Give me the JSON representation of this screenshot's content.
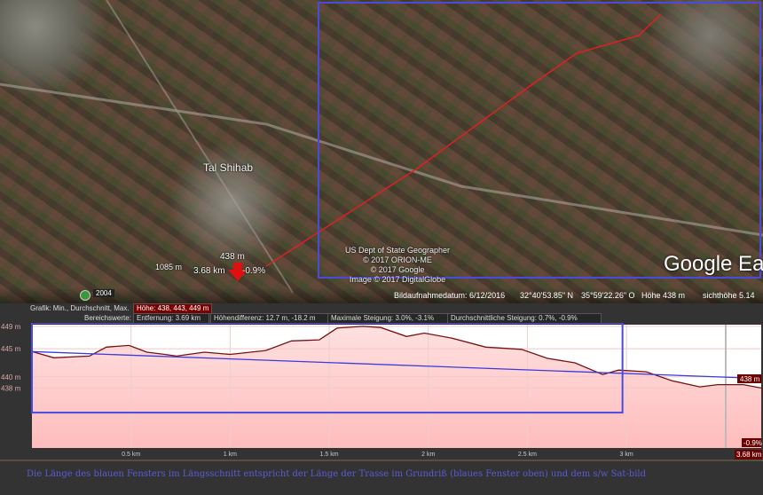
{
  "map": {
    "place_label": "Tal Shihab",
    "marker_elevation": "438 m",
    "marker_distance": "3.68 km",
    "marker_slope": "-0.9%",
    "elevation_label_left": "1085 m",
    "credits": [
      "US Dept of State Geographer",
      "© 2017 ORION-ME",
      "© 2017 Google",
      "Image © 2017 DigitalGlobe"
    ],
    "logo": "Google Ea",
    "route_color": "#e02020",
    "window_color": "#4a4adf",
    "marker_icon": "red-arrow-down-icon"
  },
  "statusbar": {
    "history_year": "2004",
    "imagery_date": "Bildaufnahmedatum: 6/12/2016",
    "lat": "32°40'53.85\" N",
    "lon": "35°59'22.26\" O",
    "elevation": "Höhe  438 m",
    "eye_alt": "sichthöhe  5.14"
  },
  "profile_panel": {
    "graph_label": "Grafik: Min., Durchschnitt, Max.",
    "height_values": "Höhe: 438, 443, 449 m",
    "range_label": "Bereichswerte:",
    "distance": "Entfernung: 3.69 km",
    "elev_diff": "Höhendifferenz: 12.7 m, -18.2 m",
    "max_slope": "Maximale Steigung: 3.0%, -3.1%",
    "avg_slope": "Durchschnittliche Steigung: 0.7%, -0.9%"
  },
  "chart_data": {
    "type": "area",
    "ylim": [
      427.3,
      449.3
    ],
    "xlim": [
      0,
      3.68
    ],
    "yticks": [
      {
        "v": 449,
        "label": "449 m"
      },
      {
        "v": 445,
        "label": "445 m"
      },
      {
        "v": 440,
        "label": "440 m"
      },
      {
        "v": 438,
        "label": "438 m"
      }
    ],
    "xticks": [
      {
        "v": 0.5,
        "label": "0.5 km"
      },
      {
        "v": 1,
        "label": "1 km"
      },
      {
        "v": 1.5,
        "label": "1.5 km"
      },
      {
        "v": 2,
        "label": "2 km"
      },
      {
        "v": 2.5,
        "label": "2.5 km"
      },
      {
        "v": 3,
        "label": "3 km"
      }
    ],
    "end_label": "3.68 km",
    "cursor_elevation": "438 m",
    "cursor_slope": "-0.9%",
    "profile": [
      [
        0,
        444.5
      ],
      [
        0.11,
        443.4
      ],
      [
        0.29,
        443.7
      ],
      [
        0.375,
        445.3
      ],
      [
        0.49,
        445.6
      ],
      [
        0.58,
        444.4
      ],
      [
        0.67,
        444
      ],
      [
        0.73,
        443.7
      ],
      [
        0.87,
        444.4
      ],
      [
        1.0,
        444
      ],
      [
        1.18,
        444.7
      ],
      [
        1.31,
        446.4
      ],
      [
        1.45,
        446.6
      ],
      [
        1.54,
        448.7
      ],
      [
        1.67,
        449
      ],
      [
        1.76,
        448.8
      ],
      [
        1.89,
        447.2
      ],
      [
        1.98,
        447.8
      ],
      [
        2.12,
        446.9
      ],
      [
        2.29,
        445.3
      ],
      [
        2.47,
        444.9
      ],
      [
        2.6,
        443.3
      ],
      [
        2.74,
        442.5
      ],
      [
        2.88,
        440.4
      ],
      [
        2.96,
        441.2
      ],
      [
        3.1,
        440.9
      ],
      [
        3.23,
        439.3
      ],
      [
        3.37,
        438.2
      ],
      [
        3.46,
        438.6
      ],
      [
        3.59,
        438.6
      ],
      [
        3.68,
        438
      ]
    ],
    "trend": [
      [
        0,
        444.5
      ],
      [
        3.68,
        439.7
      ]
    ],
    "window_range_km": [
      0,
      2.98
    ],
    "profile_color": "#7a1010",
    "fill_color": "#ffbcbc",
    "trend_color": "#3a3adf"
  },
  "caption": "Die Länge des blauen Fensters im Längsschnitt entspricht der Länge der Trasse im Grundriß (blaues Fenster oben) und dem s/w Sat-bild"
}
